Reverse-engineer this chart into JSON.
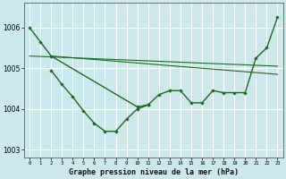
{
  "xlabel": "Graphe pression niveau de la mer (hPa)",
  "bg_color": "#cce8ed",
  "grid_color": "#ffffff",
  "line_color": "#1a6b1a",
  "ylim": [
    1002.8,
    1006.6
  ],
  "yticks": [
    1003,
    1004,
    1005,
    1006
  ],
  "xticks": [
    0,
    1,
    2,
    3,
    4,
    5,
    6,
    7,
    8,
    9,
    10,
    11,
    12,
    13,
    14,
    15,
    16,
    17,
    18,
    19,
    20,
    21,
    22,
    23
  ],
  "series1_x": [
    0,
    1,
    2,
    10,
    11,
    12,
    13,
    14,
    15,
    16,
    17,
    18,
    19,
    20,
    21,
    22,
    23
  ],
  "series1_y": [
    1006.0,
    1005.65,
    1005.3,
    1004.05,
    1004.1,
    1004.35,
    1004.45,
    1004.45,
    1004.15,
    1004.15,
    1004.45,
    1004.4,
    1004.4,
    1004.4,
    1005.25,
    1005.5,
    1006.25
  ],
  "series2_x": [
    2,
    3,
    4,
    5,
    6,
    7,
    8,
    9,
    10,
    11
  ],
  "series2_y": [
    1004.95,
    1004.6,
    1004.3,
    1003.95,
    1003.65,
    1003.45,
    1003.45,
    1003.75,
    1004.0,
    1004.1
  ],
  "line3_x": [
    0,
    23
  ],
  "line3_y": [
    1005.3,
    1005.05
  ],
  "line4_x": [
    2,
    23
  ],
  "line4_y": [
    1005.3,
    1004.85
  ]
}
